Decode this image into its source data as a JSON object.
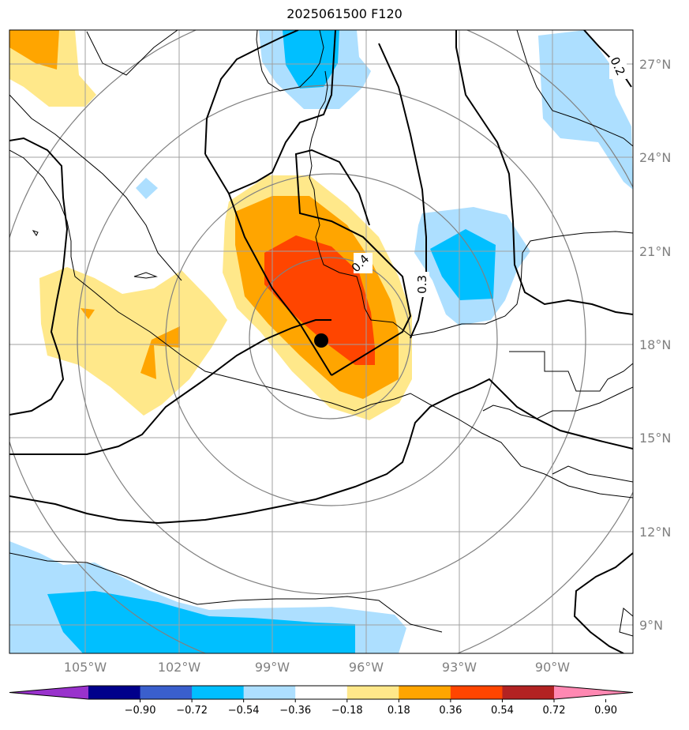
{
  "title": "2025061500 F120",
  "lat_labels": [
    "27°N",
    "24°N",
    "21°N",
    "18°N",
    "15°N",
    "12°N",
    "9°N"
  ],
  "lon_labels": [
    "105°W",
    "102°W",
    "99°W",
    "96°W",
    "93°W",
    "90°W"
  ],
  "contour_labels": [
    "0.2",
    "0.3",
    "0.4"
  ],
  "colorbar": {
    "tick_labels": [
      "−0.90",
      "−0.72",
      "−0.54",
      "−0.36",
      "−0.18",
      "0.18",
      "0.36",
      "0.54",
      "0.72",
      "0.90"
    ],
    "colors": [
      "#9932CC",
      "#00008B",
      "#3A5FCD",
      "#00BFFF",
      "#ADDFFF",
      "#FFFFFF",
      "#FFE88A",
      "#FFA500",
      "#FF4500",
      "#B22222",
      "#FF88B2"
    ]
  },
  "colors": {
    "light_yellow": "#FFE88A",
    "orange": "#FFA500",
    "red_orange": "#FF4500",
    "light_blue": "#ADDFFF",
    "deep_sky_blue": "#00BFFF"
  }
}
